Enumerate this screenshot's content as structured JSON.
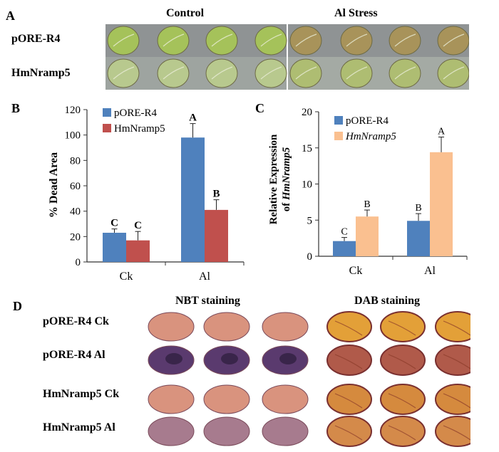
{
  "panelA": {
    "letter": "A",
    "col_headers": [
      "Control",
      "Al Stress"
    ],
    "row_labels": [
      "pORE-R4",
      "HmNramp5"
    ],
    "colors": {
      "tray": "#8f9394",
      "leaf_control": "#a5c25a",
      "leaf_al_r4": "#a8935a",
      "leaf_control_hm": "#b8c98e",
      "leaf_al_hm": "#aebd72"
    }
  },
  "panelB": {
    "letter": "B",
    "chart_data": {
      "type": "bar",
      "categories": [
        "Ck",
        "Al"
      ],
      "series": [
        {
          "name": "pORE-R4",
          "values": [
            23,
            98
          ],
          "errors": [
            3,
            11
          ],
          "letters": [
            "C",
            "A"
          ],
          "color": "#4f81bd"
        },
        {
          "name": "HmNramp5",
          "values": [
            17,
            41
          ],
          "errors": [
            7,
            8
          ],
          "letters": [
            "C",
            "B"
          ],
          "color": "#c0504d"
        }
      ],
      "ylabel": "% Dead Area",
      "ylim": [
        0,
        120
      ],
      "yticks": [
        0,
        20,
        40,
        60,
        80,
        100,
        120
      ],
      "legend": "top-left"
    }
  },
  "panelC": {
    "letter": "C",
    "chart_data": {
      "type": "bar",
      "categories": [
        "Ck",
        "Al"
      ],
      "series": [
        {
          "name": "pORE-R4",
          "values": [
            2.1,
            4.9
          ],
          "errors": [
            0.5,
            1.0
          ],
          "letters": [
            "C",
            "B"
          ],
          "color": "#4f81bd"
        },
        {
          "name": "HmNramp5",
          "values": [
            5.5,
            14.4
          ],
          "errors": [
            0.9,
            2.1
          ],
          "letters": [
            "B",
            "A"
          ],
          "color": "#fac090"
        }
      ],
      "ylabel_line1": "Relative Expression",
      "ylabel_line2_prefix": "of ",
      "ylabel_line2_gene": "HmNramp5",
      "ylim": [
        0,
        20
      ],
      "yticks": [
        0,
        5,
        10,
        15,
        20
      ],
      "legend": "top-left"
    }
  },
  "panelD": {
    "letter": "D",
    "col_headers": [
      "NBT staining",
      "DAB staining"
    ],
    "row_labels": [
      "pORE-R4 Ck",
      "pORE-R4 Al",
      "HmNramp5 Ck",
      "HmNramp5 Al"
    ],
    "colors": {
      "nbt_ck": "#d9937e",
      "nbt_al": "#5a3a6e",
      "dab_ck": "#e3a038",
      "dab_al": "#b05a4a"
    }
  }
}
